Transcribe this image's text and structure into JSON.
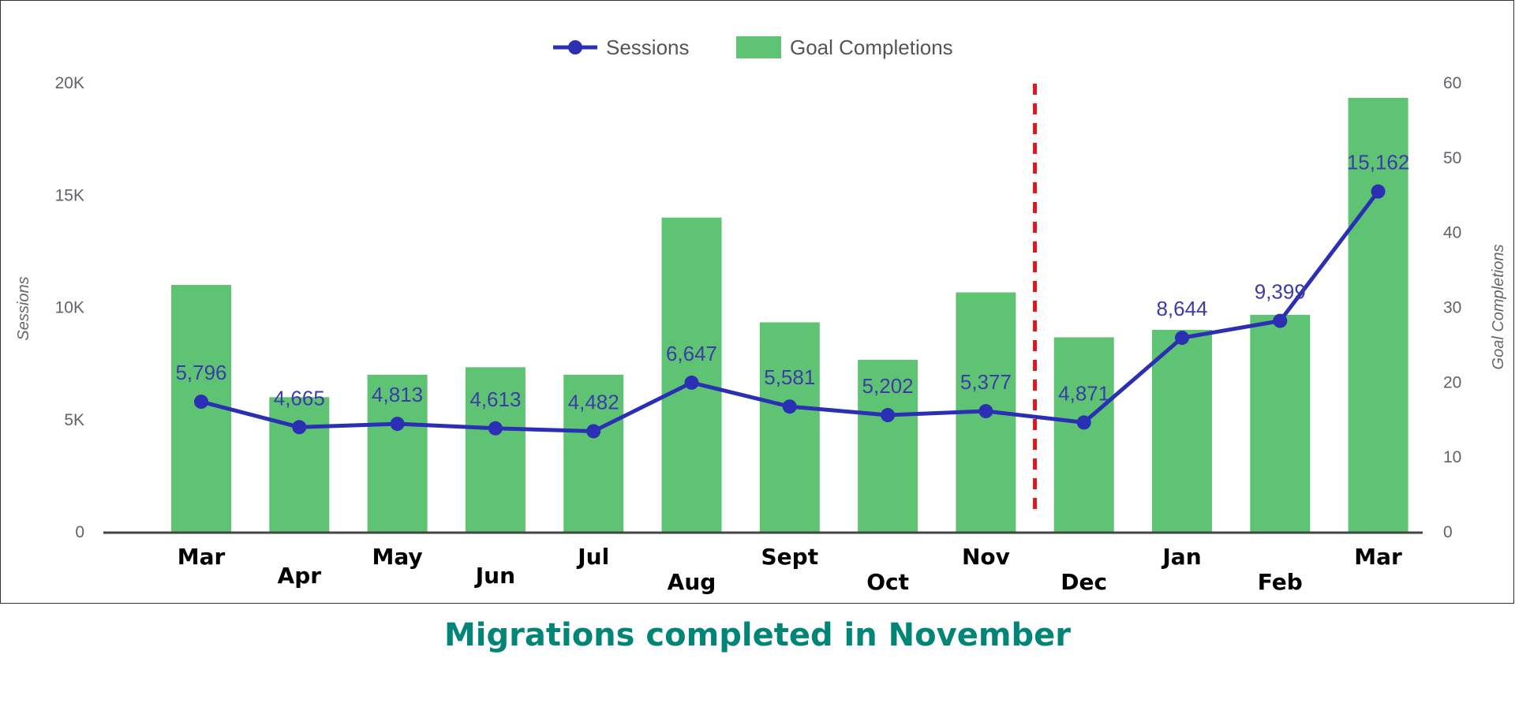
{
  "chart_data": {
    "type": "bar",
    "title": "",
    "categories": [
      "Mar",
      "Apr",
      "May",
      "Jun",
      "Jul",
      "Aug",
      "Sept",
      "Oct",
      "Nov",
      "Dec",
      "Jan",
      "Feb",
      "Mar"
    ],
    "series": [
      {
        "name": "Goal Completions",
        "type": "bar",
        "axis": "right",
        "color": "#5ec473",
        "values": [
          33,
          18,
          21,
          22,
          21,
          42,
          28,
          23,
          32,
          26,
          27,
          29,
          58
        ]
      },
      {
        "name": "Sessions",
        "type": "line",
        "axis": "left",
        "color": "#2a2fb4",
        "values": [
          5796,
          4665,
          4813,
          4613,
          4482,
          6647,
          5581,
          5202,
          5377,
          4871,
          8644,
          9399,
          15162
        ],
        "labels": [
          "5,796",
          "4,665",
          "4,813",
          "4,613",
          "4,482",
          "6,647",
          "5,581",
          "5,202",
          "5,377",
          "4,871",
          "8,644",
          "9,399",
          "15,162"
        ]
      }
    ],
    "y_left": {
      "label": "Sessions",
      "range": [
        0,
        20000
      ],
      "ticks": [
        0,
        5000,
        10000,
        15000,
        20000
      ],
      "tick_labels": [
        "0",
        "5K",
        "10K",
        "15K",
        "20K"
      ]
    },
    "y_right": {
      "label": "Goal Completions",
      "range": [
        0,
        60
      ],
      "ticks": [
        0,
        10,
        20,
        30,
        40,
        50,
        60
      ],
      "tick_labels": [
        "0",
        "10",
        "20",
        "30",
        "40",
        "50",
        "60"
      ]
    },
    "legend": {
      "placement": "top-center",
      "items": [
        "Sessions",
        "Goal Completions"
      ]
    },
    "grid": false,
    "annotation": {
      "type": "vertical-dashed-line",
      "between": [
        "Nov",
        "Dec"
      ],
      "color": "#e8141b"
    }
  },
  "caption": {
    "text": "Migrations completed in November",
    "color": "#008577"
  }
}
